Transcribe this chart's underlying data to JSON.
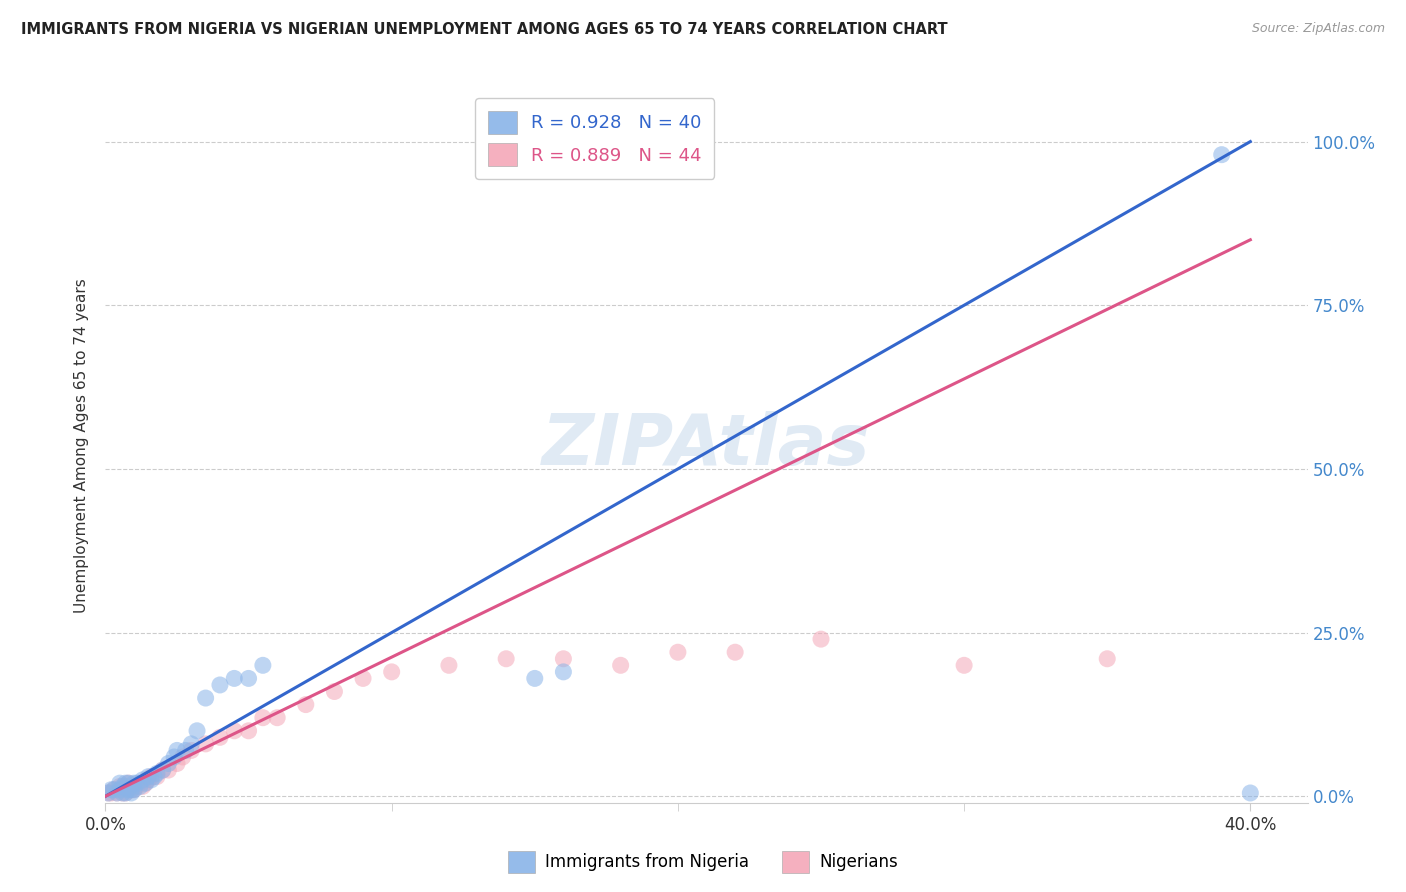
{
  "title": "IMMIGRANTS FROM NIGERIA VS NIGERIAN UNEMPLOYMENT AMONG AGES 65 TO 74 YEARS CORRELATION CHART",
  "source": "Source: ZipAtlas.com",
  "ylabel": "Unemployment Among Ages 65 to 74 years",
  "xlabel_ticks_labels": [
    "0.0%",
    "40.0%"
  ],
  "xlabel_ticks_vals": [
    0.0,
    0.4
  ],
  "ylabel_ticks_right_labels": [
    "100.0%",
    "75.0%",
    "50.0%",
    "25.0%",
    "0.0%"
  ],
  "ylabel_ticks_right_vals": [
    1.0,
    0.75,
    0.5,
    0.25,
    0.0
  ],
  "xlim": [
    0.0,
    0.42
  ],
  "ylim": [
    -0.01,
    1.08
  ],
  "blue_R": 0.928,
  "blue_N": 40,
  "pink_R": 0.889,
  "pink_N": 44,
  "blue_scatter_color": "#8ab4e8",
  "pink_scatter_color": "#f4a8b8",
  "blue_line_color": "#3366cc",
  "pink_line_color": "#dd5588",
  "legend_label_blue": "Immigrants from Nigeria",
  "legend_label_pink": "Nigerians",
  "watermark": "ZIPAtlas",
  "title_color": "#222222",
  "source_color": "#999999",
  "axis_label_color": "#333333",
  "tick_color_right": "#4488cc",
  "background_color": "#ffffff",
  "grid_color": "#cccccc",
  "blue_line_x": [
    0.0,
    0.4
  ],
  "blue_line_y": [
    0.0,
    1.0
  ],
  "pink_line_x": [
    0.0,
    0.4
  ],
  "pink_line_y": [
    0.0,
    0.85
  ],
  "blue_scatter_x": [
    0.001,
    0.002,
    0.003,
    0.004,
    0.005,
    0.005,
    0.006,
    0.006,
    0.007,
    0.007,
    0.008,
    0.008,
    0.009,
    0.009,
    0.01,
    0.01,
    0.011,
    0.012,
    0.013,
    0.014,
    0.015,
    0.016,
    0.017,
    0.018,
    0.02,
    0.022,
    0.024,
    0.025,
    0.028,
    0.03,
    0.032,
    0.035,
    0.04,
    0.045,
    0.05,
    0.055,
    0.15,
    0.16,
    0.39,
    0.4
  ],
  "blue_scatter_y": [
    0.005,
    0.01,
    0.01,
    0.005,
    0.01,
    0.02,
    0.005,
    0.015,
    0.005,
    0.02,
    0.01,
    0.02,
    0.01,
    0.005,
    0.01,
    0.02,
    0.02,
    0.015,
    0.025,
    0.02,
    0.03,
    0.025,
    0.03,
    0.035,
    0.04,
    0.05,
    0.06,
    0.07,
    0.07,
    0.08,
    0.1,
    0.15,
    0.17,
    0.18,
    0.18,
    0.2,
    0.18,
    0.19,
    0.98,
    0.005
  ],
  "pink_scatter_x": [
    0.001,
    0.002,
    0.003,
    0.004,
    0.005,
    0.005,
    0.006,
    0.007,
    0.007,
    0.008,
    0.008,
    0.009,
    0.01,
    0.011,
    0.012,
    0.013,
    0.014,
    0.015,
    0.016,
    0.018,
    0.02,
    0.022,
    0.025,
    0.027,
    0.03,
    0.035,
    0.04,
    0.045,
    0.05,
    0.055,
    0.06,
    0.07,
    0.08,
    0.09,
    0.1,
    0.12,
    0.14,
    0.16,
    0.18,
    0.2,
    0.22,
    0.25,
    0.3,
    0.35
  ],
  "pink_scatter_y": [
    0.005,
    0.005,
    0.01,
    0.005,
    0.01,
    0.015,
    0.005,
    0.005,
    0.015,
    0.01,
    0.02,
    0.01,
    0.01,
    0.015,
    0.02,
    0.015,
    0.02,
    0.025,
    0.03,
    0.03,
    0.04,
    0.04,
    0.05,
    0.06,
    0.07,
    0.08,
    0.09,
    0.1,
    0.1,
    0.12,
    0.12,
    0.14,
    0.16,
    0.18,
    0.19,
    0.2,
    0.21,
    0.21,
    0.2,
    0.22,
    0.22,
    0.24,
    0.2,
    0.21
  ]
}
